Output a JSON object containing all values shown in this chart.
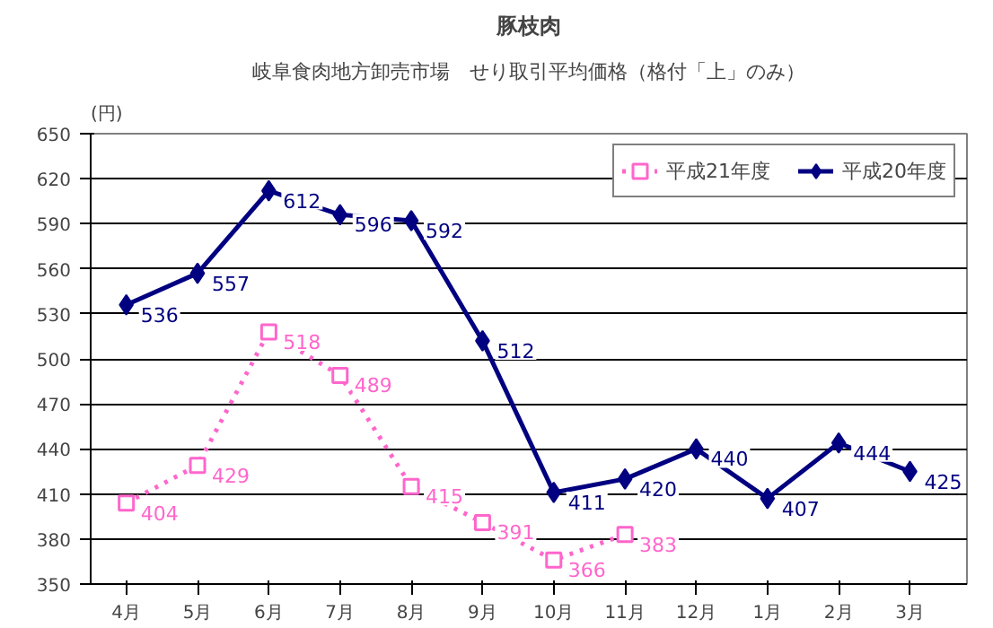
{
  "chart_data": {
    "type": "line",
    "title": "豚枝肉",
    "subtitle": "岐阜食肉地方卸売市場　せり取引平均価格（格付「上」のみ）",
    "ylabel": "(円)",
    "categories": [
      "4月",
      "5月",
      "6月",
      "7月",
      "8月",
      "9月",
      "10月",
      "11月",
      "12月",
      "1月",
      "2月",
      "3月"
    ],
    "series": [
      {
        "name": "平成21年度",
        "color": "#ff66cc",
        "marker": "square",
        "line_style": "dotted",
        "values": [
          404,
          429,
          518,
          489,
          415,
          391,
          366,
          383,
          null,
          null,
          null,
          null
        ]
      },
      {
        "name": "平成20年度",
        "color": "#000080",
        "marker": "diamond",
        "line_style": "solid",
        "values": [
          536,
          557,
          612,
          596,
          592,
          512,
          411,
          420,
          440,
          407,
          444,
          425
        ]
      }
    ],
    "ylim": [
      350,
      650
    ],
    "yticks": [
      350,
      380,
      410,
      440,
      470,
      500,
      530,
      560,
      590,
      620,
      650
    ],
    "grid": "y",
    "legend": "top right",
    "data_labels": true
  }
}
